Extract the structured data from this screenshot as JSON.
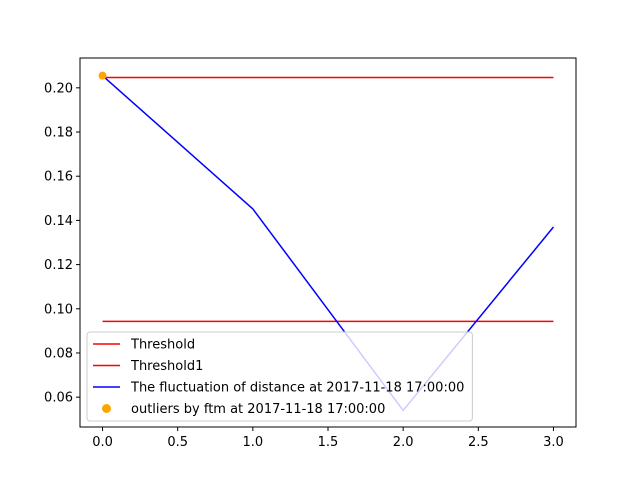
{
  "chart_data": {
    "type": "line",
    "title": "",
    "xlabel": "",
    "ylabel": "",
    "xlim": [
      -0.15,
      3.15
    ],
    "ylim": [
      0.0465,
      0.2135
    ],
    "xticks": [
      0.0,
      0.5,
      1.0,
      1.5,
      2.0,
      2.5,
      3.0
    ],
    "xtick_labels": [
      "0.0",
      "0.5",
      "1.0",
      "1.5",
      "2.0",
      "2.5",
      "3.0"
    ],
    "yticks": [
      0.06,
      0.08,
      0.1,
      0.12,
      0.14,
      0.16,
      0.18,
      0.2
    ],
    "ytick_labels": [
      "0.06",
      "0.08",
      "0.10",
      "0.12",
      "0.14",
      "0.16",
      "0.18",
      "0.20"
    ],
    "grid": false,
    "legend_position": "lower-left",
    "series": [
      {
        "name": "Threshold",
        "kind": "line",
        "color": "#ff0000",
        "x": [
          0,
          3
        ],
        "y": [
          0.2047,
          0.2047
        ]
      },
      {
        "name": "Threshold1",
        "kind": "line",
        "color": "#ff0000",
        "x": [
          0,
          3
        ],
        "y": [
          0.0943,
          0.0943
        ]
      },
      {
        "name": "The fluctuation of distance at 2017-11-18 17:00:00",
        "kind": "line",
        "color": "#0000ff",
        "x": [
          0,
          1,
          2,
          3
        ],
        "y": [
          0.2055,
          0.1452,
          0.054,
          0.137
        ]
      },
      {
        "name": "outliers by ftm at 2017-11-18 17:00:00",
        "kind": "scatter",
        "color": "#ffa500",
        "x": [
          0
        ],
        "y": [
          0.2055
        ]
      }
    ]
  }
}
